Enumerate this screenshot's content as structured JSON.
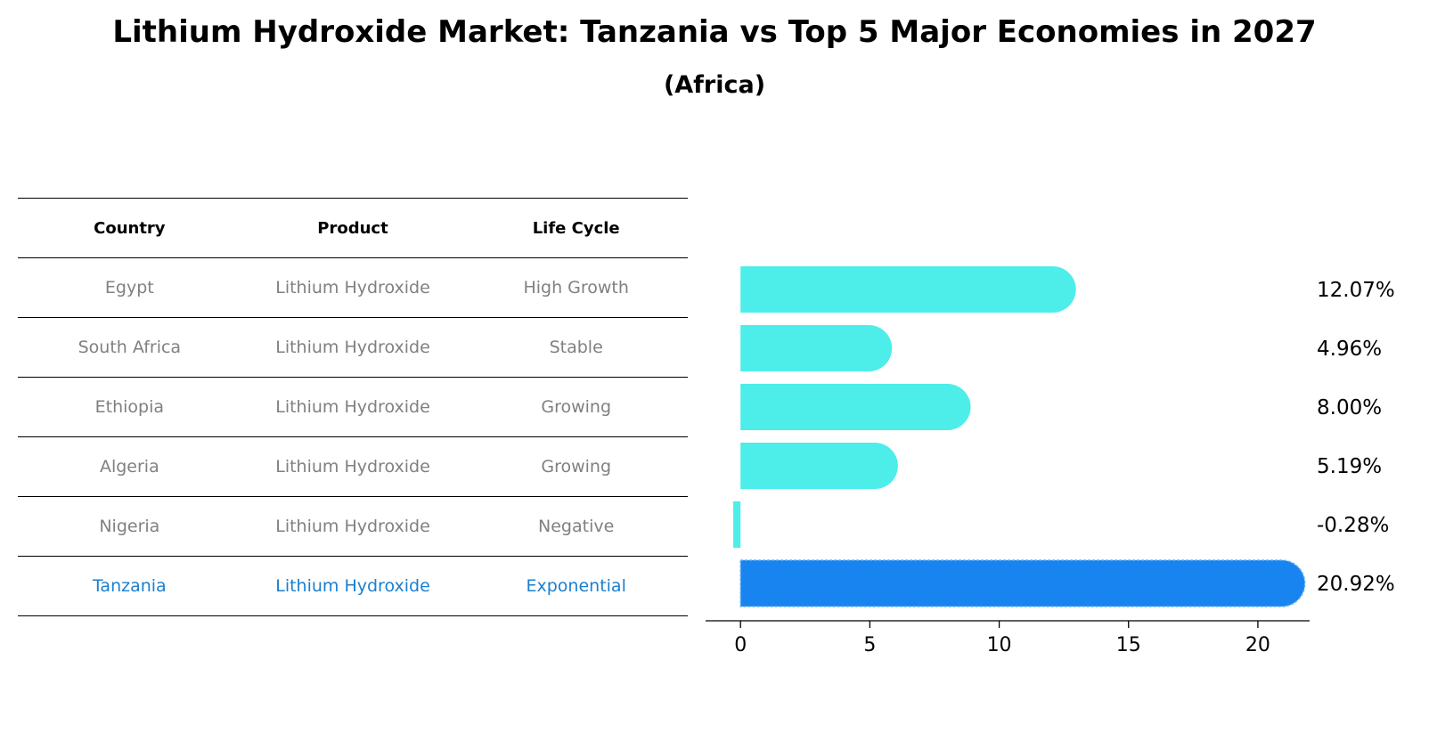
{
  "title": "Lithium Hydroxide Market: Tanzania vs Top 5 Major Economies in 2027",
  "subtitle": "(Africa)",
  "table": {
    "headers": [
      "Country",
      "Product",
      "Life Cycle"
    ],
    "rows": [
      [
        "Egypt",
        "Lithium Hydroxide",
        "High Growth"
      ],
      [
        "South Africa",
        "Lithium Hydroxide",
        "Stable"
      ],
      [
        "Ethiopia",
        "Lithium Hydroxide",
        "Growing"
      ],
      [
        "Algeria",
        "Lithium Hydroxide",
        "Growing"
      ],
      [
        "Nigeria",
        "Lithium Hydroxide",
        "Negative"
      ],
      [
        "Tanzania",
        "Lithium Hydroxide",
        "Exponential"
      ]
    ],
    "highlight_row": 5
  },
  "chart_data": {
    "type": "bar",
    "orientation": "horizontal",
    "title": "Lithium Hydroxide Market: Tanzania vs Top 5 Major Economies in 2027",
    "subtitle": "(Africa)",
    "categories": [
      "Egypt",
      "South Africa",
      "Ethiopia",
      "Algeria",
      "Nigeria",
      "Tanzania"
    ],
    "values": [
      12.07,
      4.96,
      8.0,
      5.19,
      -0.28,
      20.92
    ],
    "value_labels": [
      "12.07%",
      "4.96%",
      "8.00%",
      "5.19%",
      "-0.28%",
      "20.92%"
    ],
    "xticks": [
      0,
      5,
      10,
      15,
      20
    ],
    "xlim": [
      -1.35,
      22
    ],
    "xlabel": "",
    "ylabel": "",
    "grid": false,
    "highlight_index": 5,
    "colors": {
      "bar": "#4dede9",
      "highlight": "#1884f0"
    }
  }
}
